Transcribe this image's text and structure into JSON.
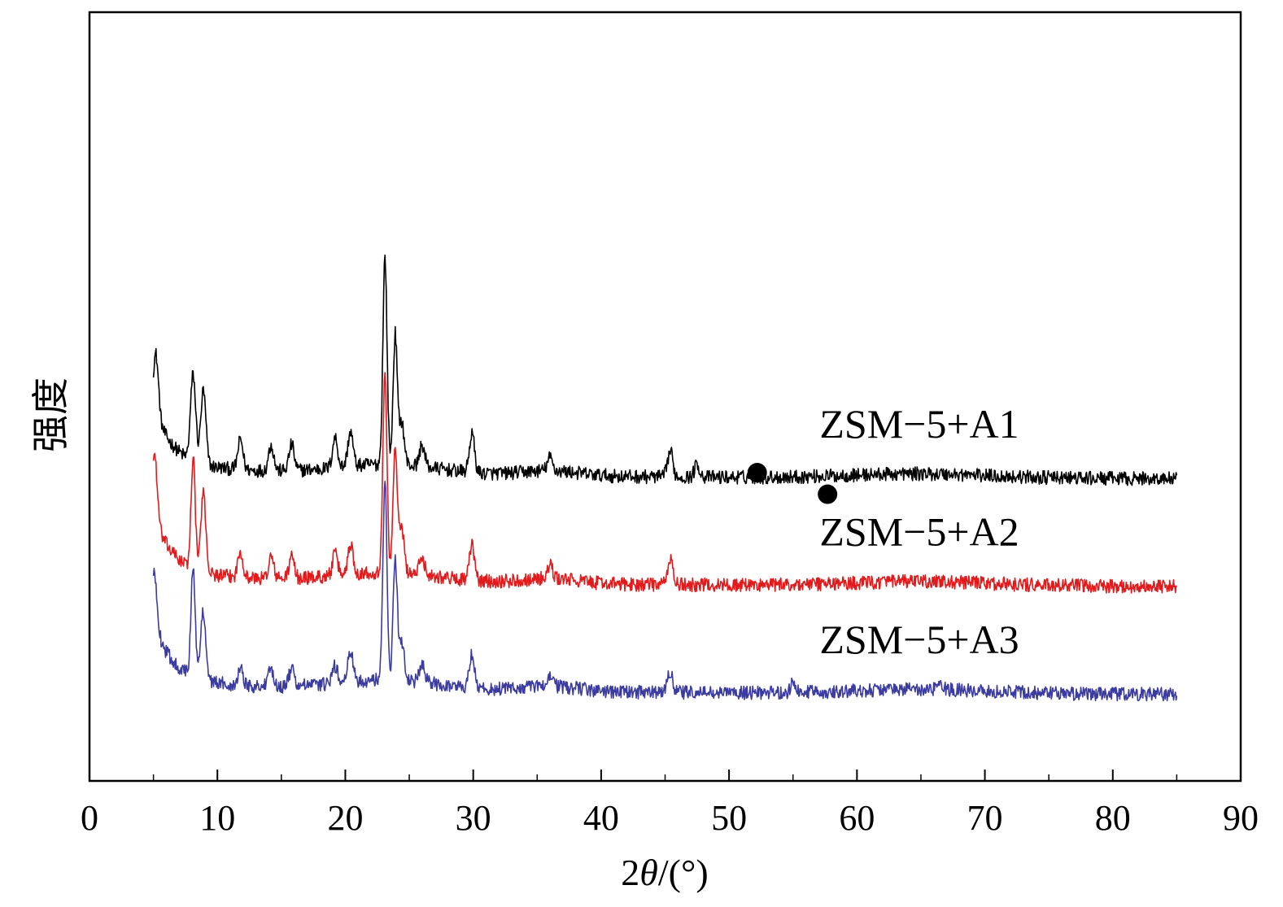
{
  "chart_data": {
    "type": "line",
    "title": "",
    "xlabel": "2θ/(°)",
    "xlabel_parts": {
      "prefix": "2",
      "symbol": "θ",
      "suffix": "/(°)"
    },
    "ylabel": "强度",
    "xlim": [
      0,
      90
    ],
    "xticks": [
      0,
      10,
      20,
      30,
      40,
      50,
      60,
      70,
      80,
      90
    ],
    "yticks_shown": false,
    "grid": false,
    "series": [
      {
        "name": "ZSM−5+A1",
        "color": "#000000",
        "label_position": "right",
        "baseline_intensity": 70,
        "peaks": [
          [
            5.2,
            14
          ],
          [
            8.1,
            20
          ],
          [
            8.9,
            17
          ],
          [
            11.8,
            7
          ],
          [
            14.2,
            6
          ],
          [
            15.8,
            6
          ],
          [
            19.2,
            7
          ],
          [
            20.4,
            8
          ],
          [
            23.1,
            48
          ],
          [
            23.9,
            30
          ],
          [
            24.4,
            10
          ],
          [
            26.0,
            5
          ],
          [
            29.9,
            9
          ],
          [
            36.0,
            3
          ],
          [
            45.4,
            6
          ],
          [
            47.5,
            3
          ]
        ],
        "markers": [
          [
            52.2,
            71.5
          ],
          [
            57.7,
            66.5
          ]
        ]
      },
      {
        "name": "ZSM−5+A2",
        "color": "#e31a1c",
        "label_position": "right",
        "baseline_intensity": 45,
        "peaks": [
          [
            5.1,
            15
          ],
          [
            8.1,
            26
          ],
          [
            8.9,
            18
          ],
          [
            11.8,
            6
          ],
          [
            14.2,
            5
          ],
          [
            15.8,
            5
          ],
          [
            19.2,
            5
          ],
          [
            20.4,
            7
          ],
          [
            23.1,
            46
          ],
          [
            23.9,
            29
          ],
          [
            24.4,
            10
          ],
          [
            26.0,
            4
          ],
          [
            29.9,
            8
          ],
          [
            36.0,
            3
          ],
          [
            45.4,
            6
          ]
        ]
      },
      {
        "name": "ZSM−5+A3",
        "color": "#3c3ca0",
        "label_position": "right",
        "baseline_intensity": 20,
        "peaks": [
          [
            5.1,
            12
          ],
          [
            8.1,
            26
          ],
          [
            8.9,
            16
          ],
          [
            11.8,
            4
          ],
          [
            14.2,
            4
          ],
          [
            15.8,
            4
          ],
          [
            19.2,
            4
          ],
          [
            20.4,
            7
          ],
          [
            23.1,
            46
          ],
          [
            23.9,
            28
          ],
          [
            24.4,
            9
          ],
          [
            26.0,
            4
          ],
          [
            29.9,
            8
          ],
          [
            36.0,
            3
          ],
          [
            45.4,
            5
          ],
          [
            55.0,
            2
          ],
          [
            66.5,
            2
          ]
        ]
      }
    ]
  }
}
